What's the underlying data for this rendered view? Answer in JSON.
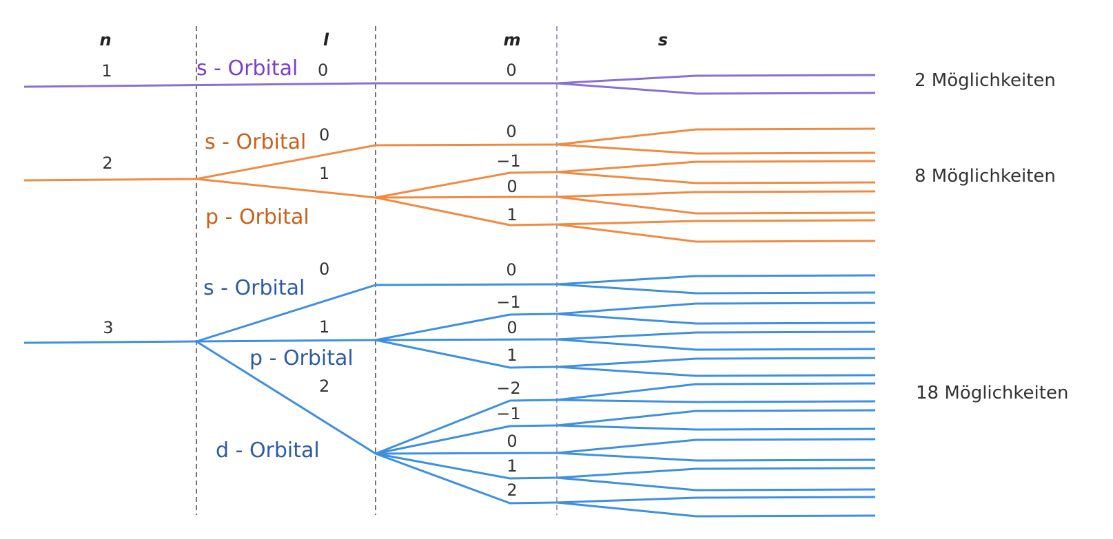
{
  "headers": {
    "n": "n",
    "l": "l",
    "m": "m",
    "s": "s"
  },
  "colors": {
    "shell1": "#8a6fd0",
    "shell2": "#f08a40",
    "shell3": "#3d8fe0",
    "label1": "#7a3fc8",
    "label2": "#c8601a",
    "label3": "#2d5aa8",
    "divider_dark": "#444444",
    "divider_purple": "#8878c8",
    "text": "#333333"
  },
  "shells": [
    {
      "n": "1",
      "orbitals": [
        {
          "name": "s - Orbital",
          "l": "0",
          "m": [
            "0"
          ]
        }
      ],
      "count_label": "2 Möglichkeiten"
    },
    {
      "n": "2",
      "orbitals": [
        {
          "name": "s - Orbital",
          "l": "0",
          "m": [
            "0"
          ]
        },
        {
          "name": "p - Orbital",
          "l": "1",
          "m": [
            "−1",
            "0",
            "1"
          ]
        }
      ],
      "count_label": "8 Möglichkeiten"
    },
    {
      "n": "3",
      "orbitals": [
        {
          "name": "s - Orbital",
          "l": "0",
          "m": [
            "0"
          ]
        },
        {
          "name": "p - Orbital",
          "l": "1",
          "m": [
            "−1",
            "0",
            "1"
          ]
        },
        {
          "name": "d - Orbital",
          "l": "2",
          "m": [
            "−2",
            "−1",
            "0",
            "1",
            "2"
          ]
        }
      ],
      "count_label": "18 Möglichkeiten"
    }
  ]
}
